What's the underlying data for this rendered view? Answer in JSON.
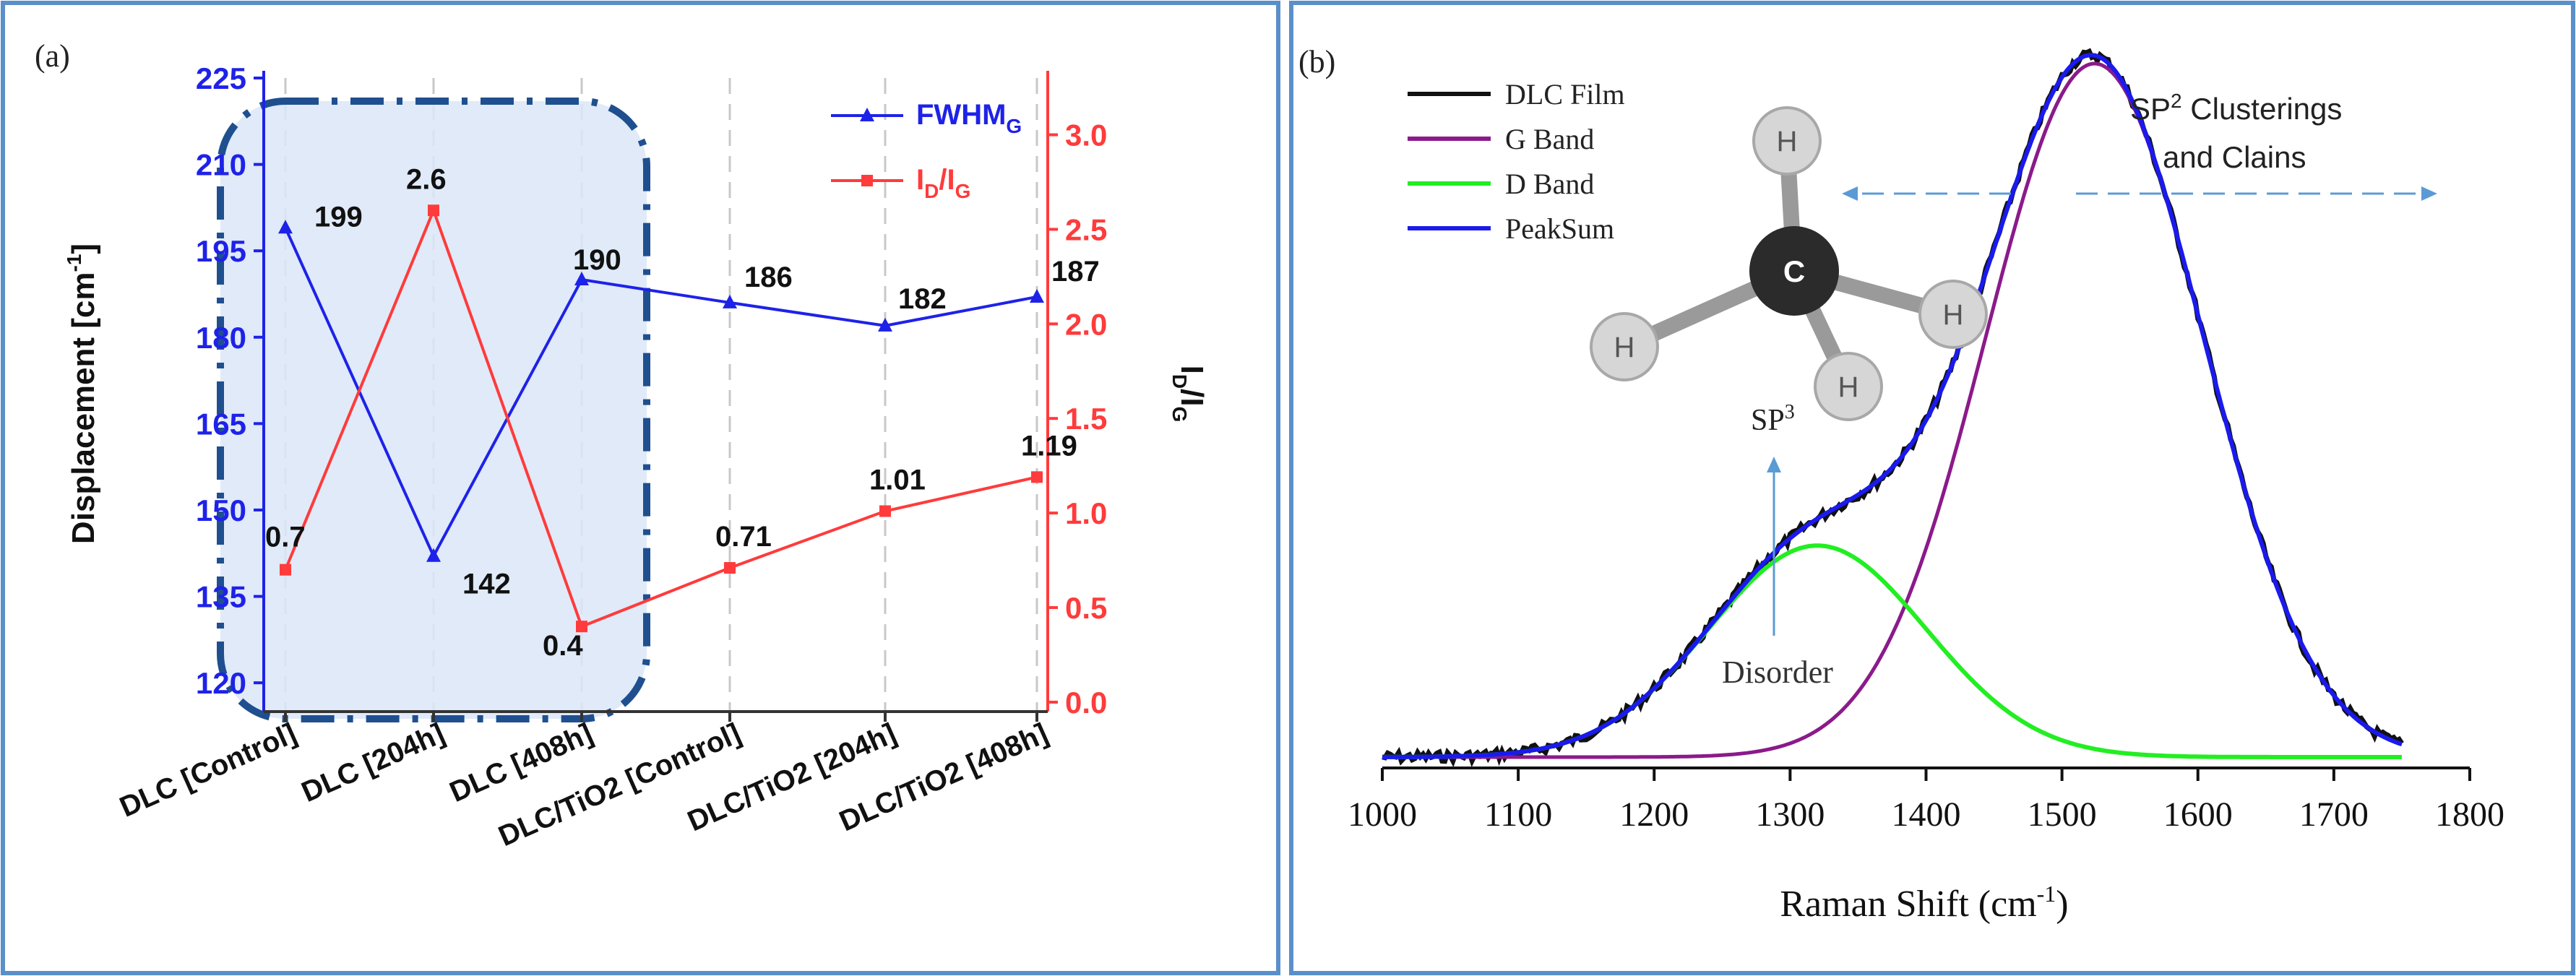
{
  "chart_data": [
    {
      "panel_label": "(a)",
      "type": "line",
      "categories": [
        "DLC [Control]",
        "DLC [204h]",
        "DLC [408h]",
        "DLC/TiO2 [Control]",
        "DLC/TiO2 [204h]",
        "DLC/TiO2 [408h]"
      ],
      "ylabel_left": "Displacement [cm",
      "ylabel_left_sup": "-1",
      "ylabel_left_tail": "]",
      "ylabel_right": "I",
      "ylabel_right_sub1": "D",
      "ylabel_right_mid": "/I",
      "ylabel_right_sub2": "G",
      "ylim_left": [
        115,
        225
      ],
      "yticks_left": [
        "120",
        "135",
        "150",
        "165",
        "180",
        "195",
        "210",
        "225"
      ],
      "ylim_right": [
        -0.05,
        3.3
      ],
      "yticks_right": [
        "0.0",
        "0.5",
        "1.0",
        "1.5",
        "2.0",
        "2.5",
        "3.0"
      ],
      "left_axis_color": "#1e22e8",
      "right_axis_color": "#ff3b3b",
      "series": [
        {
          "name": "FWHM",
          "name_sub": "G",
          "axis": "left",
          "color": "#1e22e8",
          "marker": "triangle",
          "values": [
            199,
            142,
            190,
            186,
            182,
            187
          ],
          "labels": [
            "199",
            "142",
            "190",
            "186",
            "182",
            "187"
          ]
        },
        {
          "name": "I",
          "name_sub": "D",
          "name_mid": "/I",
          "name_sub2": "G",
          "axis": "right",
          "color": "#ff3b3b",
          "marker": "square",
          "values": [
            0.7,
            2.6,
            0.4,
            0.71,
            1.01,
            1.19
          ],
          "labels": [
            "0.7",
            "2.6",
            "0.4",
            "0.71",
            "1.01",
            "1.19"
          ]
        }
      ],
      "highlight_region": "DLC samples"
    },
    {
      "panel_label": "(b)",
      "type": "line",
      "xlabel": "Raman Shift (",
      "xlabel_unit": "cm",
      "xlabel_sup": "-1",
      "xlabel_tail": ")",
      "xlim": [
        1000,
        1800
      ],
      "xticks": [
        "1000",
        "1100",
        "1200",
        "1300",
        "1400",
        "1500",
        "1600",
        "1700",
        "1800"
      ],
      "legend": [
        {
          "name": "DLC Film",
          "color": "#111111"
        },
        {
          "name": "G Band",
          "color": "#8b1a8b"
        },
        {
          "name": "D Band",
          "color": "#22ee22"
        },
        {
          "name": "PeakSum",
          "color": "#1a1aee"
        }
      ],
      "bands": {
        "G": {
          "center": 1524,
          "sigma": 80,
          "amplitude": 1.0
        },
        "D": {
          "center": 1320,
          "sigma": 80,
          "amplitude": 0.305
        }
      },
      "x_range_data": [
        1000,
        1750
      ],
      "annotations": {
        "sp3": "SP",
        "sp3_sup": "3",
        "sp2_line1_prefix": "SP",
        "sp2_sup": "2",
        "sp2_line1_suffix": " Clusterings",
        "sp2_line2": "and Clains",
        "disorder": "Disorder"
      },
      "molecule": {
        "center": "C",
        "substituent": "H"
      }
    }
  ]
}
